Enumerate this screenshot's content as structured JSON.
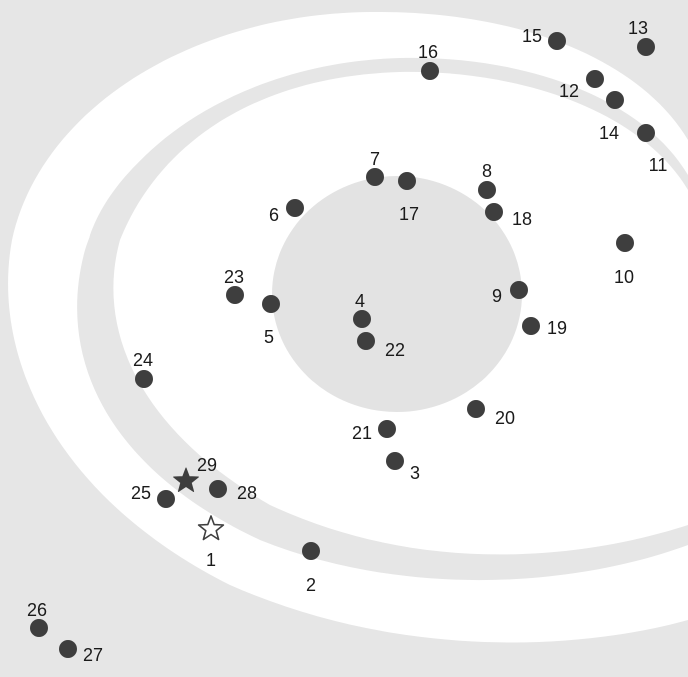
{
  "colors": {
    "background": "#e6e6e6",
    "swirl": "#ffffff",
    "center_blob": "#e3e3e3",
    "dot": "#3e3e3e",
    "label": "#1a1a1a",
    "start_star_fill": "#ffffff",
    "end_star_fill": "#3e3e3e"
  },
  "puzzle": {
    "type": "connect-the-dots",
    "points": [
      {
        "n": "1",
        "marker": "start-star-icon"
      },
      {
        "n": "2",
        "marker": "dot"
      },
      {
        "n": "3",
        "marker": "dot"
      },
      {
        "n": "4",
        "marker": "dot"
      },
      {
        "n": "5",
        "marker": "dot"
      },
      {
        "n": "6",
        "marker": "dot"
      },
      {
        "n": "7",
        "marker": "dot"
      },
      {
        "n": "8",
        "marker": "dot"
      },
      {
        "n": "9",
        "marker": "dot"
      },
      {
        "n": "10",
        "marker": "dot"
      },
      {
        "n": "11",
        "marker": "dot"
      },
      {
        "n": "12",
        "marker": "dot"
      },
      {
        "n": "13",
        "marker": "dot"
      },
      {
        "n": "14",
        "marker": "dot"
      },
      {
        "n": "15",
        "marker": "dot"
      },
      {
        "n": "16",
        "marker": "dot"
      },
      {
        "n": "17",
        "marker": "dot"
      },
      {
        "n": "18",
        "marker": "dot"
      },
      {
        "n": "19",
        "marker": "dot"
      },
      {
        "n": "20",
        "marker": "dot"
      },
      {
        "n": "21",
        "marker": "dot"
      },
      {
        "n": "22",
        "marker": "dot"
      },
      {
        "n": "23",
        "marker": "dot"
      },
      {
        "n": "24",
        "marker": "dot"
      },
      {
        "n": "25",
        "marker": "dot"
      },
      {
        "n": "26",
        "marker": "dot"
      },
      {
        "n": "27",
        "marker": "dot"
      },
      {
        "n": "28",
        "marker": "dot"
      },
      {
        "n": "29",
        "marker": "end-star-icon"
      }
    ]
  }
}
